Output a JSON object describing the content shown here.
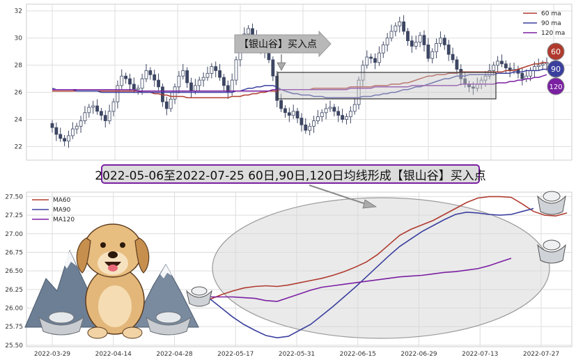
{
  "caption": "2022-05-06至2022-07-25 60日,90日,120日均线形成【银山谷】买入点",
  "chart_data": [
    {
      "type": "candlestick",
      "ylim": [
        21,
        32.5
      ],
      "yticks": [
        "22",
        "24",
        "26",
        "28",
        "30",
        "32"
      ],
      "grid": true,
      "legend": [
        {
          "name": "60 ma",
          "color": "#b03a2e"
        },
        {
          "name": "90 ma",
          "color": "#3a3f9e"
        },
        {
          "name": "120 ma",
          "color": "#7a1fa2"
        }
      ],
      "annotation": "【银山谷】买入点",
      "badges": [
        {
          "label": "60",
          "color": "#b03a2e"
        },
        {
          "label": "90",
          "color": "#3a3f9e"
        },
        {
          "label": "120",
          "color": "#7a1fa2"
        }
      ],
      "candle_colors": {
        "up": "#ffffff",
        "down": "#3d4663",
        "edge": "#3d4663"
      },
      "close": [
        23.4,
        22.9,
        22.6,
        22.4,
        22.8,
        23.3,
        23.5,
        23.9,
        24.5,
        24.9,
        25.0,
        24.6,
        24.3,
        23.9,
        24.6,
        25.3,
        26.5,
        27.2,
        27.0,
        26.6,
        26.2,
        26.3,
        27.0,
        27.6,
        27.3,
        26.9,
        26.4,
        25.3,
        24.8,
        25.5,
        26.4,
        27.2,
        27.6,
        26.7,
        26.1,
        26.5,
        26.9,
        27.1,
        27.4,
        27.9,
        27.6,
        27.1,
        26.5,
        26.0,
        26.9,
        28.4,
        29.4,
        30.3,
        30.7,
        30.1,
        29.5,
        29.2,
        29.0,
        28.4,
        27.2,
        25.4,
        24.8,
        24.5,
        24.3,
        24.6,
        24.1,
        23.6,
        23.2,
        23.5,
        23.9,
        24.2,
        24.5,
        24.8,
        24.9,
        24.6,
        24.3,
        24.0,
        24.2,
        24.6,
        25.1,
        26.9,
        28.0,
        28.6,
        28.5,
        28.2,
        28.9,
        29.5,
        30.0,
        30.5,
        30.9,
        31.2,
        30.5,
        29.8,
        29.4,
        29.7,
        30.2,
        29.5,
        28.5,
        29.0,
        29.6,
        30.0,
        29.5,
        28.8,
        28.4,
        27.7,
        27.0,
        26.6,
        26.4,
        26.3,
        26.6,
        26.9,
        27.2,
        27.6,
        28.0,
        28.3,
        28.1,
        27.8,
        27.6,
        27.7,
        27.4,
        27.0,
        27.2,
        27.6,
        27.9,
        28.0,
        28.1,
        28.2
      ],
      "ma60": [
        26.1,
        26.1,
        26.1,
        26.1,
        26.1,
        26.1,
        26.1,
        26.1,
        26.1,
        26.1,
        26.1,
        26.1,
        26.1,
        26.1,
        26.1,
        26.1,
        26.1,
        26.1,
        26.1,
        26.1,
        26.1,
        26.1,
        26.0,
        26.0,
        26.0,
        25.9,
        25.9,
        25.8,
        25.8,
        25.7,
        25.7,
        25.7,
        25.7,
        25.6,
        25.6,
        25.6,
        25.6,
        25.6,
        25.6,
        25.6,
        25.6,
        25.6,
        25.6,
        25.6,
        25.7,
        25.7,
        25.7,
        25.8,
        25.8,
        25.9,
        25.9,
        26.0,
        26.0,
        26.1,
        26.1,
        26.1,
        26.2,
        26.2,
        26.2,
        26.2,
        26.2,
        26.2,
        26.2,
        26.2,
        26.3,
        26.3,
        26.3,
        26.3,
        26.3,
        26.3,
        26.3,
        26.3,
        26.3,
        26.4,
        26.4,
        26.4,
        26.4,
        26.4,
        26.4,
        26.5,
        26.5,
        26.5,
        26.5,
        26.6,
        26.6,
        26.6,
        26.7,
        26.7,
        26.8,
        26.9,
        27.0,
        27.1,
        27.2,
        27.2,
        27.3,
        27.3,
        27.3,
        27.4,
        27.4,
        27.4,
        27.5,
        27.5,
        27.5,
        27.5,
        27.5,
        27.5,
        27.5,
        27.5,
        27.5,
        27.5,
        27.5,
        27.6,
        27.6,
        27.6,
        27.7,
        27.8,
        27.9,
        28.0,
        28.1,
        28.1,
        28.2,
        28.2
      ],
      "ma90": [
        26.3,
        26.2,
        26.2,
        26.2,
        26.2,
        26.2,
        26.1,
        26.1,
        26.1,
        26.1,
        26.1,
        26.1,
        26.0,
        26.0,
        26.0,
        26.0,
        26.0,
        26.0,
        26.0,
        26.0,
        26.0,
        26.0,
        26.0,
        26.0,
        26.0,
        26.0,
        26.0,
        26.0,
        26.0,
        26.0,
        26.0,
        26.0,
        26.0,
        26.0,
        26.0,
        26.0,
        26.0,
        26.0,
        26.0,
        26.0,
        26.0,
        26.0,
        26.0,
        26.0,
        26.0,
        26.1,
        26.1,
        26.2,
        26.3,
        26.3,
        26.4,
        26.4,
        26.5,
        26.5,
        26.5,
        26.4,
        26.2,
        26.1,
        26.0,
        25.9,
        25.9,
        25.8,
        25.8,
        25.8,
        25.7,
        25.7,
        25.7,
        25.6,
        25.6,
        25.6,
        25.6,
        25.6,
        25.6,
        25.6,
        25.6,
        25.6,
        25.7,
        25.7,
        25.7,
        25.8,
        25.8,
        25.9,
        25.9,
        26.0,
        26.0,
        26.1,
        26.2,
        26.2,
        26.3,
        26.4,
        26.4,
        26.5,
        26.6,
        26.7,
        26.8,
        26.9,
        27.0,
        27.0,
        27.1,
        27.2,
        27.2,
        27.2,
        27.3,
        27.3,
        27.3,
        27.3,
        27.3,
        27.3,
        27.3,
        27.4,
        27.4,
        27.4,
        27.4,
        27.5,
        27.5,
        27.5,
        27.6,
        27.6,
        27.6,
        27.6,
        27.7,
        27.7
      ],
      "ma120": [
        26.2,
        26.2,
        26.2,
        26.2,
        26.2,
        26.2,
        26.2,
        26.2,
        26.2,
        26.2,
        26.2,
        26.2,
        26.2,
        26.2,
        26.2,
        26.2,
        26.2,
        26.2,
        26.2,
        26.2,
        26.2,
        26.1,
        26.1,
        26.1,
        26.1,
        26.1,
        26.1,
        26.1,
        26.1,
        26.1,
        26.1,
        26.1,
        26.1,
        26.1,
        26.1,
        26.1,
        26.1,
        26.1,
        26.1,
        26.1,
        26.1,
        26.1,
        26.1,
        26.1,
        26.1,
        26.1,
        26.1,
        26.1,
        26.1,
        26.1,
        26.1,
        26.1,
        26.1,
        26.1,
        26.2,
        26.2,
        26.2,
        26.2,
        26.2,
        26.2,
        26.2,
        26.2,
        26.2,
        26.2,
        26.2,
        26.2,
        26.2,
        26.2,
        26.2,
        26.2,
        26.2,
        26.2,
        26.2,
        26.3,
        26.3,
        26.3,
        26.3,
        26.3,
        26.3,
        26.4,
        26.4,
        26.4,
        26.4,
        26.4,
        26.4,
        26.4,
        26.4,
        26.4,
        26.5,
        26.5,
        26.5,
        26.5,
        26.5,
        26.5,
        26.5,
        26.5,
        26.5,
        26.5,
        26.5,
        26.5,
        26.6,
        26.6,
        26.6,
        26.6,
        26.6,
        26.6,
        26.6,
        26.6,
        26.6,
        26.7,
        26.7,
        26.7,
        26.8,
        26.8,
        26.9,
        26.9,
        27.0,
        27.0,
        27.1,
        27.1,
        27.2,
        27.3
      ]
    },
    {
      "type": "line",
      "ylim": [
        25.48,
        27.56
      ],
      "yticks": [
        "25.50",
        "25.75",
        "26.00",
        "26.25",
        "26.50",
        "26.75",
        "27.00",
        "27.25",
        "27.50"
      ],
      "x_labels": [
        "2022-03-29",
        "2022-04-14",
        "2022-04-28",
        "2022-05-17",
        "2022-05-31",
        "2022-06-15",
        "2022-06-29",
        "2022-07-13",
        "2022-07-27"
      ],
      "grid": true,
      "legend_position": "top-left",
      "series": [
        {
          "name": "MA60",
          "color": "#b03a2e",
          "values": [
            26.12,
            26.18,
            26.23,
            26.27,
            26.29,
            26.3,
            26.29,
            26.31,
            26.34,
            26.37,
            26.4,
            26.44,
            26.49,
            26.55,
            26.62,
            26.72,
            26.85,
            26.98,
            27.06,
            27.12,
            27.18,
            27.26,
            27.34,
            27.42,
            27.48,
            27.5,
            27.5,
            27.49,
            27.4,
            27.3,
            27.25,
            27.24,
            27.28
          ]
        },
        {
          "name": "MA90",
          "color": "#3a3f9e",
          "values": [
            26.12,
            26.0,
            25.88,
            25.78,
            25.7,
            25.63,
            25.6,
            25.62,
            25.7,
            25.78,
            25.9,
            26.02,
            26.15,
            26.28,
            26.42,
            26.56,
            26.7,
            26.83,
            26.93,
            27.03,
            27.11,
            27.19,
            27.26,
            27.29,
            27.28,
            27.26,
            27.25,
            27.26,
            27.3,
            27.34
          ]
        },
        {
          "name": "MA120",
          "color": "#7a1fa2",
          "values": [
            26.15,
            26.15,
            26.15,
            26.14,
            26.13,
            26.1,
            26.09,
            26.14,
            26.19,
            26.24,
            26.28,
            26.3,
            26.32,
            26.34,
            26.36,
            26.38,
            26.4,
            26.42,
            26.43,
            26.44,
            26.46,
            26.48,
            26.49,
            26.51,
            26.53,
            26.57,
            26.62,
            26.67
          ]
        }
      ]
    }
  ]
}
